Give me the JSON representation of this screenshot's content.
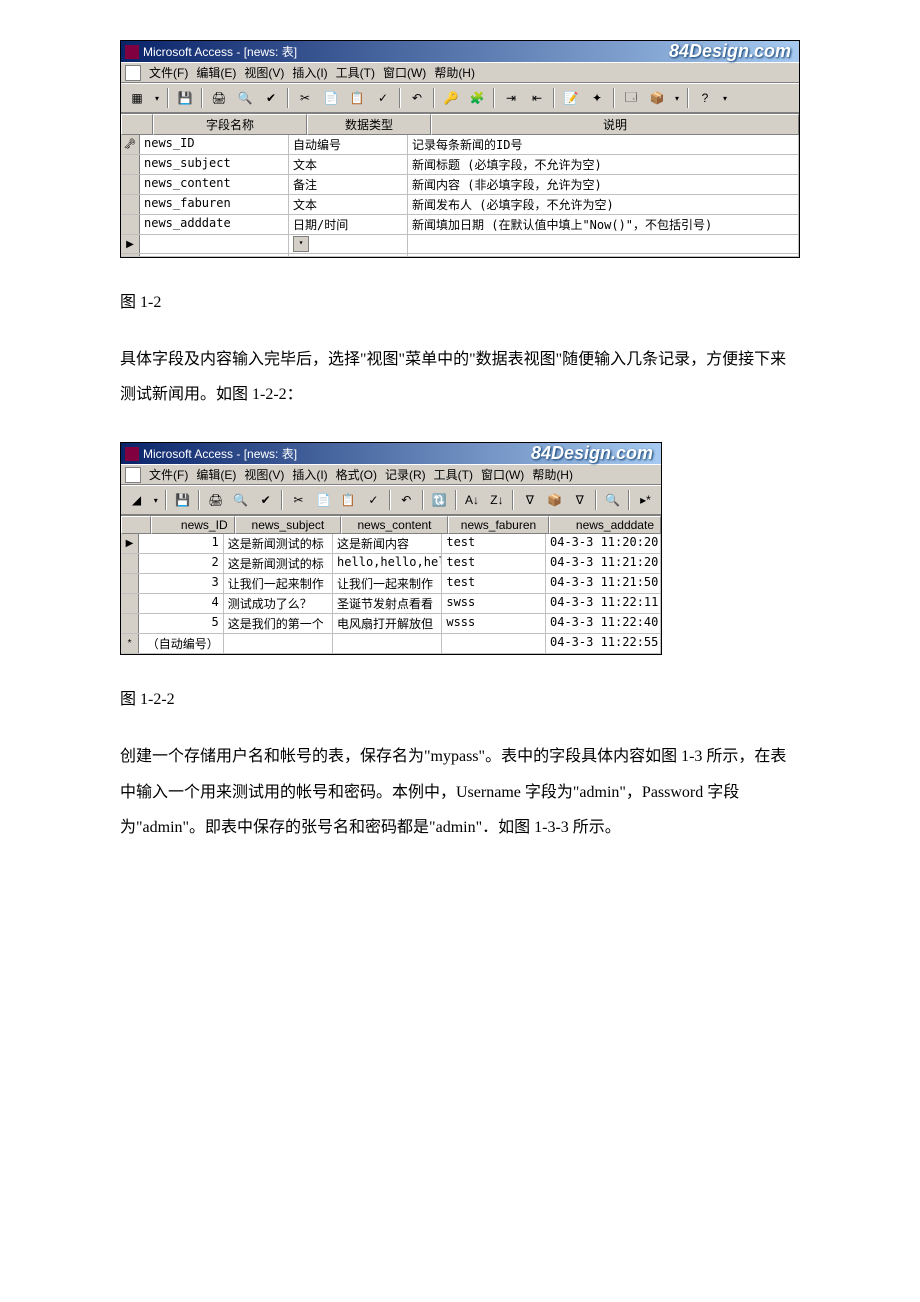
{
  "colors": {
    "titlebar_start": "#0a246a",
    "titlebar_end": "#a6caf0",
    "chrome": "#d4d0c8",
    "border_dark": "#808080",
    "white": "#ffffff",
    "text": "#000000"
  },
  "watermark": "84Design.com",
  "screenshot1": {
    "title": "Microsoft Access - [news: 表]",
    "menu": [
      "文件(F)",
      "编辑(E)",
      "视图(V)",
      "插入(I)",
      "工具(T)",
      "窗口(W)",
      "帮助(H)"
    ],
    "toolbar_icons": [
      "▦",
      "▾",
      "💾",
      "🖨",
      "🔍",
      "✔",
      "✂",
      "📄",
      "📋",
      "✓",
      "↶",
      "🔑",
      "🧩",
      "⇥",
      "⇤",
      "📝",
      "✦",
      "🗔",
      "📦",
      "?"
    ],
    "headers": {
      "name": "字段名称",
      "type": "数据类型",
      "desc": "说明"
    },
    "key_row_indicator": "🗝",
    "current_row_indicator": "▶",
    "rows": [
      {
        "sel": "key",
        "name": "news_ID",
        "type": "自动编号",
        "desc": "记录每条新闻的ID号"
      },
      {
        "sel": "",
        "name": "news_subject",
        "type": "文本",
        "desc": "新闻标题 (必填字段，不允许为空)"
      },
      {
        "sel": "",
        "name": "news_content",
        "type": "备注",
        "desc": "新闻内容 (非必填字段，允许为空)"
      },
      {
        "sel": "",
        "name": "news_faburen",
        "type": "文本",
        "desc": "新闻发布人 (必填字段，不允许为空)"
      },
      {
        "sel": "",
        "name": "news_adddate",
        "type": "日期/时间",
        "desc": "新闻填加日期 (在默认值中填上\"Now()\"，不包括引号)"
      },
      {
        "sel": "cur",
        "name": "",
        "type": "",
        "desc": "",
        "has_dropdown": true
      },
      {
        "sel": "",
        "name": "",
        "type": "",
        "desc": ""
      }
    ]
  },
  "caption1": "图 1-2",
  "paragraph1": "具体字段及内容输入完毕后，选择\"视图\"菜单中的\"数据表视图\"随便输入几条记录，方便接下来测试新闻用。如图 1-2-2：",
  "screenshot2": {
    "title": "Microsoft Access - [news: 表]",
    "menu": [
      "文件(F)",
      "编辑(E)",
      "视图(V)",
      "插入(I)",
      "格式(O)",
      "记录(R)",
      "工具(T)",
      "窗口(W)",
      "帮助(H)"
    ],
    "toolbar_icons": [
      "◢",
      "▾",
      "💾",
      "🖨",
      "🔍",
      "✔",
      "✂",
      "📄",
      "📋",
      "✓",
      "↶",
      "🔃",
      "A↓",
      "Z↓",
      "∇",
      "📦",
      "∇",
      "🔍",
      "▸*"
    ],
    "headers": [
      "news_ID",
      "news_subject",
      "news_content",
      "news_faburen",
      "news_adddate"
    ],
    "current_row_indicator": "▶",
    "new_row_indicator": "*",
    "auto_label": "（自动编号）",
    "rows": [
      {
        "sel": "cur",
        "id": "1",
        "subject": "这是新闻测试的标",
        "content": "这是新闻内容",
        "faburen": "test",
        "date": "04-3-3 11:20:20"
      },
      {
        "sel": "",
        "id": "2",
        "subject": "这是新闻测试的标",
        "content": "hello,hello,hel",
        "faburen": "test",
        "date": "04-3-3 11:21:20"
      },
      {
        "sel": "",
        "id": "3",
        "subject": "让我们一起来制作",
        "content": "让我们一起来制作",
        "faburen": "test",
        "date": "04-3-3 11:21:50"
      },
      {
        "sel": "",
        "id": "4",
        "subject": "测试成功了么？",
        "content": "圣诞节发射点看看",
        "faburen": "swss",
        "date": "04-3-3 11:22:11"
      },
      {
        "sel": "",
        "id": "5",
        "subject": "这是我们的第一个",
        "content": "电风扇打开解放但",
        "faburen": "wsss",
        "date": "04-3-3 11:22:40"
      },
      {
        "sel": "new",
        "id": "auto",
        "subject": "",
        "content": "",
        "faburen": "",
        "date": "04-3-3 11:22:55"
      }
    ]
  },
  "caption2": "图 1-2-2",
  "paragraph2": "创建一个存储用户名和帐号的表，保存名为\"mypass\"。表中的字段具体内容如图 1-3 所示，在表中输入一个用来测试用的帐号和密码。本例中，Username 字段为\"admin\"，Password 字段为\"admin\"。即表中保存的张号名和密码都是\"admin\"．如图 1-3-3 所示。"
}
